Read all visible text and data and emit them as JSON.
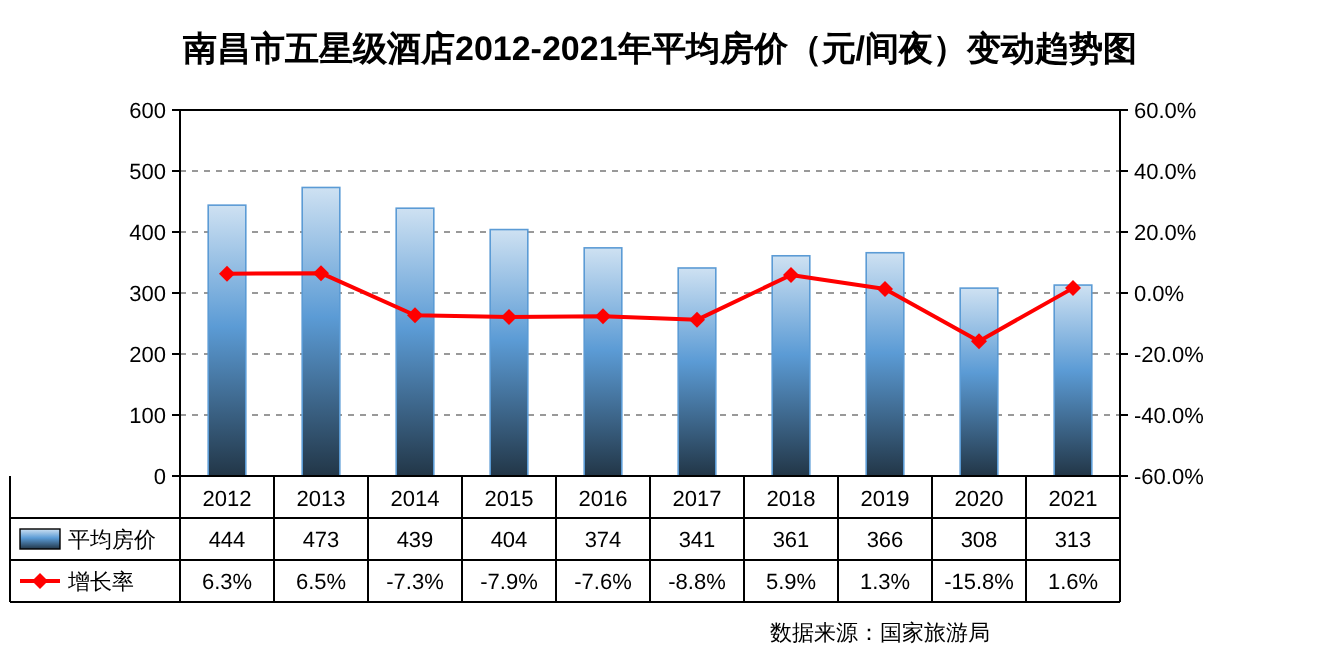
{
  "chart_data": {
    "type": "bar",
    "title": "南昌市五星级酒店2012-2021年平均房价（元/间夜）变动趋势图",
    "categories": [
      "2012",
      "2013",
      "2014",
      "2015",
      "2016",
      "2017",
      "2018",
      "2019",
      "2020",
      "2021"
    ],
    "series": [
      {
        "name": "平均房价",
        "color": "#5b9bd5",
        "values": [
          444,
          473,
          439,
          404,
          374,
          341,
          361,
          366,
          308,
          313
        ],
        "value_labels": [
          "444",
          "473",
          "439",
          "404",
          "374",
          "341",
          "361",
          "366",
          "308",
          "313"
        ]
      },
      {
        "name": "增长率",
        "type": "line",
        "axis": "y2",
        "color": "#ff0000",
        "marker": "diamond",
        "values": [
          6.3,
          6.5,
          -7.3,
          -7.9,
          -7.6,
          -8.8,
          5.9,
          1.3,
          -15.8,
          1.6
        ],
        "value_labels": [
          "6.3%",
          "6.5%",
          "-7.3%",
          "-7.9%",
          "-7.6%",
          "-8.8%",
          "5.9%",
          "1.3%",
          "-15.8%",
          "1.6%"
        ]
      }
    ],
    "ylim": [
      0,
      600
    ],
    "yticks": [
      0,
      100,
      200,
      300,
      400,
      500,
      600
    ],
    "y2lim": [
      -60,
      60
    ],
    "y2ticks": [
      {
        "value": -60,
        "label": "-60.0%"
      },
      {
        "value": -40,
        "label": "-40.0%"
      },
      {
        "value": -20,
        "label": "-20.0%"
      },
      {
        "value": 0,
        "label": "0.0%"
      },
      {
        "value": 20,
        "label": "20.0%"
      },
      {
        "value": 40,
        "label": "40.0%"
      },
      {
        "value": 60,
        "label": "60.0%"
      }
    ],
    "grid": "y",
    "legend": "bottom",
    "annotations": [
      "数据来源：国家旅游局"
    ]
  }
}
